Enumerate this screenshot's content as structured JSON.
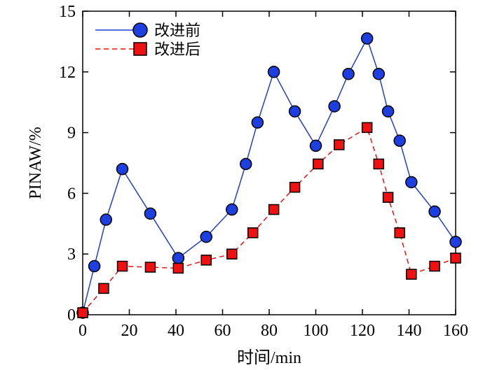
{
  "chart_data": {
    "type": "line",
    "title": "",
    "xlabel": "时间/min",
    "ylabel": "PINAW/%",
    "xlim": [
      0,
      160
    ],
    "ylim": [
      0,
      15
    ],
    "xticks": [
      0,
      20,
      40,
      60,
      80,
      100,
      120,
      140,
      160
    ],
    "yticks": [
      0,
      3,
      6,
      9,
      12,
      15
    ],
    "grid": false,
    "legend_position": "top-left",
    "series": [
      {
        "name": "改进前",
        "color": "#1f3fd6",
        "marker_color": "#1e3fe0",
        "line_style": "solid",
        "marker": "circle",
        "points": [
          [
            0,
            0.1
          ],
          [
            5,
            2.4
          ],
          [
            10,
            4.7
          ],
          [
            17,
            7.2
          ],
          [
            29,
            5.0
          ],
          [
            41,
            2.8
          ],
          [
            53,
            3.85
          ],
          [
            64,
            5.2
          ],
          [
            70,
            7.45
          ],
          [
            75,
            9.5
          ],
          [
            82,
            12.0
          ],
          [
            91,
            10.05
          ],
          [
            100,
            8.35
          ],
          [
            108,
            10.3
          ],
          [
            114,
            11.9
          ],
          [
            122,
            13.65
          ],
          [
            127,
            11.9
          ],
          [
            131,
            10.05
          ],
          [
            136,
            8.6
          ],
          [
            141,
            6.55
          ],
          [
            151,
            5.1
          ],
          [
            160,
            3.6
          ]
        ]
      },
      {
        "name": "改进后",
        "color": "#ee1111",
        "marker_color": "#ee1111",
        "line_style": "dashed",
        "marker": "square",
        "points": [
          [
            0,
            0.1
          ],
          [
            9,
            1.3
          ],
          [
            17,
            2.4
          ],
          [
            29,
            2.35
          ],
          [
            41,
            2.3
          ],
          [
            53,
            2.7
          ],
          [
            64,
            3.0
          ],
          [
            73,
            4.05
          ],
          [
            82,
            5.2
          ],
          [
            91,
            6.3
          ],
          [
            101,
            7.45
          ],
          [
            110,
            8.4
          ],
          [
            122,
            9.25
          ],
          [
            127,
            7.45
          ],
          [
            131,
            5.8
          ],
          [
            136,
            4.05
          ],
          [
            141,
            2.0
          ],
          [
            151,
            2.4
          ],
          [
            160,
            2.8
          ]
        ]
      }
    ]
  }
}
